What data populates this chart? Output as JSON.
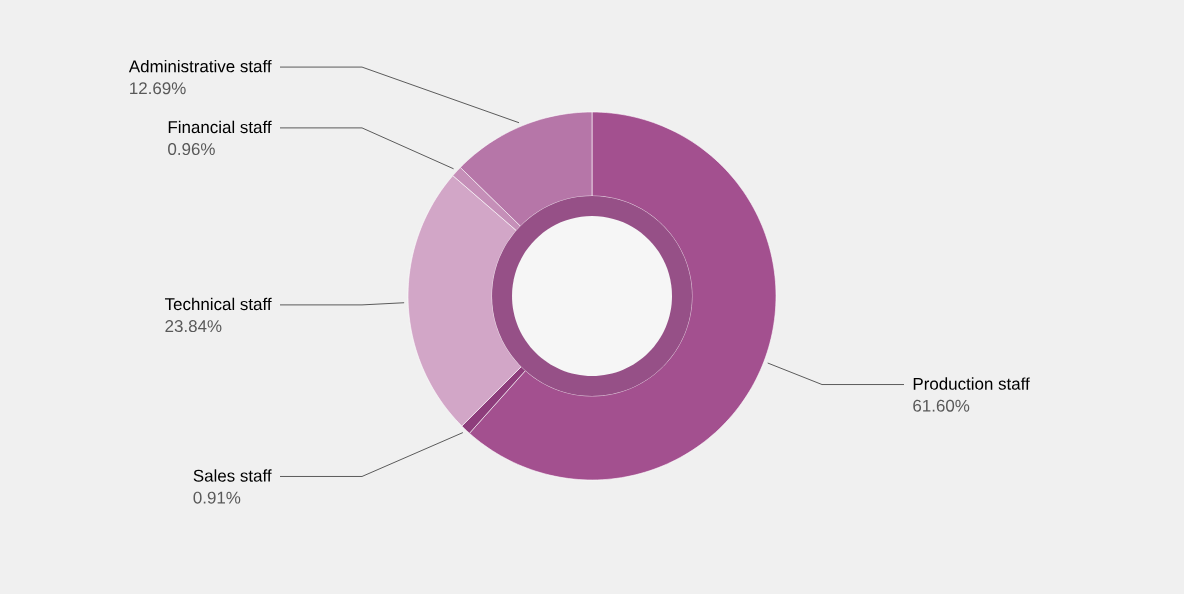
{
  "chart_data": {
    "type": "donut",
    "categories": [
      "Production staff",
      "Sales staff",
      "Technical staff",
      "Financial staff",
      "Administrative staff"
    ],
    "values": [
      61.6,
      0.91,
      23.84,
      0.96,
      12.69
    ],
    "value_labels": [
      "61.60%",
      "0.91%",
      "23.84%",
      "0.96%",
      "12.69%"
    ],
    "colors": [
      "#a3508f",
      "#8e3d7c",
      "#d2a6c7",
      "#c58fb8",
      "#b676a8"
    ]
  }
}
